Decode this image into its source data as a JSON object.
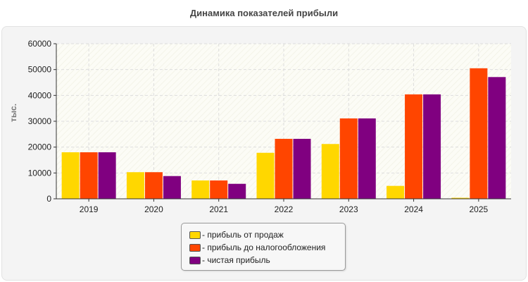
{
  "chart_data": {
    "type": "bar",
    "title": "Динамика показателей прибыли",
    "ylabel": "тыс.",
    "xlabel": "",
    "ylim": [
      0,
      60000
    ],
    "yticks": [
      0,
      10000,
      20000,
      30000,
      40000,
      50000,
      60000
    ],
    "categories": [
      "2019",
      "2020",
      "2021",
      "2022",
      "2023",
      "2024",
      "2025"
    ],
    "grid": true,
    "legend_position": "bottom",
    "series": [
      {
        "name": "- прибыль от продаж",
        "color": "#FFD700",
        "values": [
          18000,
          10300,
          7100,
          17800,
          21200,
          5000,
          400
        ]
      },
      {
        "name": "- прибыль до налогообложения",
        "color": "#FF4500",
        "values": [
          18000,
          10300,
          7100,
          23200,
          31100,
          40400,
          50500
        ]
      },
      {
        "name": "- чистая прибыль",
        "color": "#800080",
        "values": [
          18000,
          8800,
          5800,
          23200,
          31100,
          40400,
          47100
        ]
      }
    ]
  }
}
